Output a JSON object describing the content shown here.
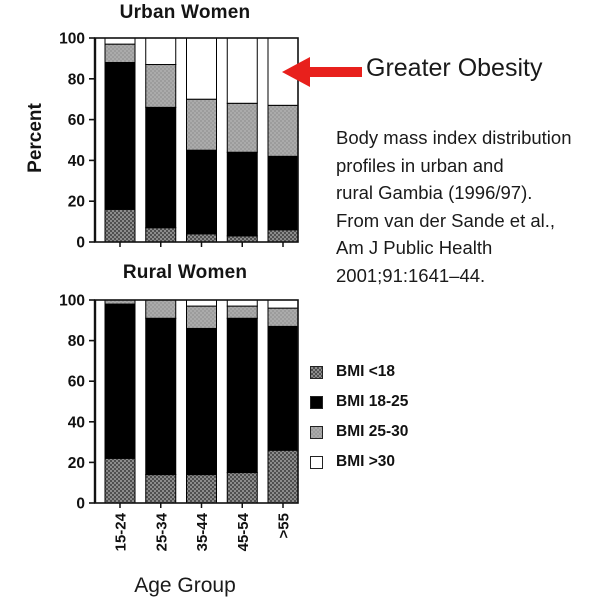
{
  "axis": {
    "ylabel": "Percent",
    "xlabel": "Age Group"
  },
  "annotation": {
    "label": "Greater Obesity",
    "arrow_color": "#e8201c"
  },
  "caption": {
    "lines": [
      "Body mass index distribution",
      "profiles in urban and",
      "rural Gambia (1996/97).",
      "From van der Sande et al.,",
      "Am J Public Health",
      "2001;91:1641–44."
    ]
  },
  "legend": {
    "items": [
      {
        "label": "BMI <18",
        "swatch": "hatch"
      },
      {
        "label": "BMI 18-25",
        "swatch": "black"
      },
      {
        "label": "BMI 25-30",
        "swatch": "gray"
      },
      {
        "label": "BMI >30",
        "swatch": "white"
      }
    ]
  },
  "colors": {
    "hatch_dark": "#4f4f4f",
    "hatch_light": "#8c8c8c",
    "gray_base": "#ababab",
    "gray_dot": "#9c9c9c",
    "black": "#000000",
    "white": "#ffffff",
    "axis": "#111111"
  },
  "chart_data": [
    {
      "type": "bar",
      "stacked": true,
      "title": "Urban Women",
      "ylabel": "Percent",
      "ylim": [
        0,
        100
      ],
      "yticks": [
        0,
        20,
        40,
        60,
        80,
        100
      ],
      "grid": false,
      "show_xticklabels": false,
      "categories": [
        "15-24",
        "25-34",
        "35-44",
        "45-54",
        ">55"
      ],
      "series": [
        {
          "name": "BMI <18",
          "values": [
            16,
            7,
            4,
            3,
            6
          ]
        },
        {
          "name": "BMI 18-25",
          "values": [
            72,
            59,
            41,
            41,
            36
          ]
        },
        {
          "name": "BMI 25-30",
          "values": [
            9,
            21,
            25,
            24,
            25
          ]
        },
        {
          "name": "BMI >30",
          "values": [
            3,
            13,
            30,
            32,
            33
          ]
        }
      ]
    },
    {
      "type": "bar",
      "stacked": true,
      "title": "Rural Women",
      "xlabel": "Age Group",
      "ylim": [
        0,
        100
      ],
      "yticks": [
        0,
        20,
        40,
        60,
        80,
        100
      ],
      "grid": false,
      "show_xticklabels": true,
      "categories": [
        "15-24",
        "25-34",
        "35-44",
        "45-54",
        ">55"
      ],
      "series": [
        {
          "name": "BMI <18",
          "values": [
            22,
            14,
            14,
            15,
            26
          ]
        },
        {
          "name": "BMI 18-25",
          "values": [
            76,
            77,
            72,
            76,
            61
          ]
        },
        {
          "name": "BMI 25-30",
          "values": [
            2,
            9,
            11,
            6,
            9
          ]
        },
        {
          "name": "BMI >30",
          "values": [
            0,
            0,
            3,
            3,
            4
          ]
        }
      ]
    }
  ]
}
